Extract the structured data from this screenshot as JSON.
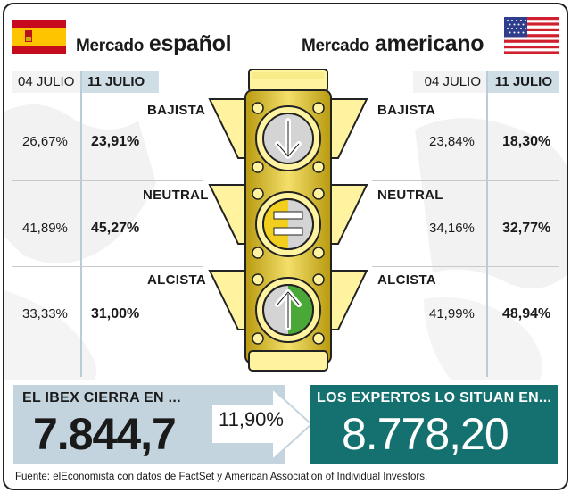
{
  "spain": {
    "title_light": "Mercado",
    "title_heavy": "español",
    "flag_colors": {
      "red": "#c60b1e",
      "yellow": "#ffc400"
    }
  },
  "usa": {
    "title_light": "Mercado",
    "title_heavy": "americano"
  },
  "dates": {
    "old": "04 JULIO",
    "new": "11 JULIO"
  },
  "rows": [
    {
      "label": "BAJISTA",
      "es_old": "26,67%",
      "es_new": "23,91%",
      "us_old": "23,84%",
      "us_new": "18,30%"
    },
    {
      "label": "NEUTRAL",
      "es_old": "41,89%",
      "es_new": "45,27%",
      "us_old": "34,16%",
      "us_new": "32,77%"
    },
    {
      "label": "ALCISTA",
      "es_old": "33,33%",
      "es_new": "31,00%",
      "us_old": "41,99%",
      "us_new": "48,94%"
    }
  ],
  "ibex": {
    "title": "EL IBEX CIERRA EN ...",
    "value": "7.844,7"
  },
  "change": "11,90%",
  "experts": {
    "title": "LOS EXPERTOS LO SITUAN EN...",
    "value": "8.778,20"
  },
  "source": "Fuente: elEconomista con datos de FactSet y American Association of Individual Investors.",
  "colors": {
    "light_yellow": "#fff3a0",
    "gold": "#cdb020",
    "green": "#4aa838",
    "teal": "#15716f",
    "steel": "#c3d4de"
  },
  "icons": {
    "lamp_top": "down-arrow-icon",
    "lamp_middle": "equals-icon",
    "lamp_bottom": "up-arrow-icon"
  }
}
